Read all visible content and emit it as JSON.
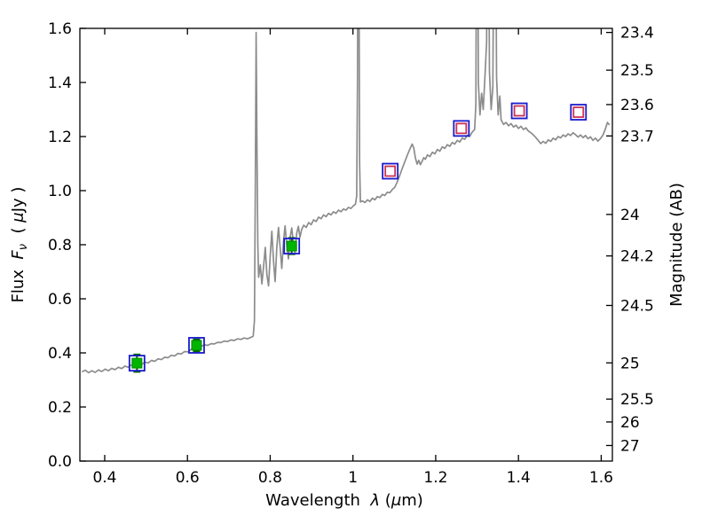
{
  "labels": {
    "xlabel": {
      "p1": "Wavelength  ",
      "p2": "λ",
      "p3": " (",
      "p4": "μ",
      "p5": "m)"
    },
    "ylabel_left": {
      "p1": "Flux  ",
      "p2": "F",
      "p3": "ν",
      "p4": "  ( ",
      "p5": "μ",
      "p6": "Jy )"
    },
    "ylabel_right": "Magnitude (AB)"
  },
  "chart_data": {
    "type": "line",
    "title": "",
    "xlabel": "Wavelength λ (μm)",
    "ylabel_left": "Flux Fν (μJy)",
    "ylabel_right": "Magnitude (AB)",
    "xlim": [
      0.34,
      1.627
    ],
    "ylim": [
      0.0,
      1.6
    ],
    "grid": false,
    "legend_position": "none",
    "ab_zeropoint": 23.9,
    "x_ticks": [
      0.4,
      0.6,
      0.8,
      1.0,
      1.2,
      1.4,
      1.6
    ],
    "x_tick_labels": [
      "0.4",
      "0.6",
      "0.8",
      "1",
      "1.2",
      "1.4",
      "1.6"
    ],
    "y_ticks_left": [
      0.0,
      0.2,
      0.4,
      0.6,
      0.8,
      1.0,
      1.2,
      1.4,
      1.6
    ],
    "y_tick_labels_left": [
      "0.0",
      "0.2",
      "0.4",
      "0.6",
      "0.8",
      "1.0",
      "1.2",
      "1.4",
      "1.6"
    ],
    "y_ticks_right_mag": [
      23.4,
      23.5,
      23.6,
      23.7,
      24,
      24.2,
      24.5,
      25,
      25.5,
      26,
      27
    ],
    "y_tick_labels_right": [
      "23.4",
      "23.5",
      "23.6",
      "23.7",
      "24",
      "24.2",
      "24.5",
      "25",
      "25.5",
      "26",
      "27"
    ],
    "colors": {
      "background": "#ffffff",
      "frame": "#000000",
      "spectrum_gray": "#8c8c8c",
      "marker_blue": "#1a1acd",
      "marker_green": "#00b400",
      "errorbar_dark_green": "#006400",
      "marker_red": "#cc3355",
      "text": "#000000"
    },
    "series": [
      {
        "name": "model-spectrum",
        "type": "line",
        "color": "#8c8c8c",
        "linewidth": 1.7,
        "points": [
          [
            0.345,
            0.33
          ],
          [
            0.353,
            0.336
          ],
          [
            0.361,
            0.327
          ],
          [
            0.369,
            0.334
          ],
          [
            0.377,
            0.328
          ],
          [
            0.385,
            0.337
          ],
          [
            0.393,
            0.331
          ],
          [
            0.401,
            0.34
          ],
          [
            0.409,
            0.334
          ],
          [
            0.417,
            0.343
          ],
          [
            0.425,
            0.338
          ],
          [
            0.433,
            0.347
          ],
          [
            0.441,
            0.342
          ],
          [
            0.449,
            0.351
          ],
          [
            0.457,
            0.347
          ],
          [
            0.465,
            0.356
          ],
          [
            0.473,
            0.352
          ],
          [
            0.481,
            0.361
          ],
          [
            0.489,
            0.357
          ],
          [
            0.497,
            0.366
          ],
          [
            0.505,
            0.363
          ],
          [
            0.513,
            0.372
          ],
          [
            0.521,
            0.369
          ],
          [
            0.529,
            0.378
          ],
          [
            0.537,
            0.375
          ],
          [
            0.545,
            0.384
          ],
          [
            0.553,
            0.382
          ],
          [
            0.561,
            0.391
          ],
          [
            0.569,
            0.389
          ],
          [
            0.577,
            0.398
          ],
          [
            0.585,
            0.396
          ],
          [
            0.593,
            0.405
          ],
          [
            0.601,
            0.404
          ],
          [
            0.609,
            0.413
          ],
          [
            0.617,
            0.412
          ],
          [
            0.625,
            0.421
          ],
          [
            0.633,
            0.424
          ],
          [
            0.641,
            0.43
          ],
          [
            0.649,
            0.428
          ],
          [
            0.657,
            0.434
          ],
          [
            0.665,
            0.433
          ],
          [
            0.673,
            0.439
          ],
          [
            0.681,
            0.438
          ],
          [
            0.689,
            0.444
          ],
          [
            0.697,
            0.442
          ],
          [
            0.705,
            0.448
          ],
          [
            0.713,
            0.446
          ],
          [
            0.721,
            0.452
          ],
          [
            0.729,
            0.45
          ],
          [
            0.737,
            0.455
          ],
          [
            0.745,
            0.452
          ],
          [
            0.753,
            0.457
          ],
          [
            0.759,
            0.462
          ],
          [
            0.762,
            0.52
          ],
          [
            0.764,
            1.02
          ],
          [
            0.766,
            1.585
          ],
          [
            0.768,
            1.18
          ],
          [
            0.77,
            0.8
          ],
          [
            0.772,
            0.68
          ],
          [
            0.776,
            0.725
          ],
          [
            0.78,
            0.655
          ],
          [
            0.784,
            0.72
          ],
          [
            0.788,
            0.79
          ],
          [
            0.792,
            0.69
          ],
          [
            0.796,
            0.648
          ],
          [
            0.8,
            0.76
          ],
          [
            0.804,
            0.85
          ],
          [
            0.808,
            0.74
          ],
          [
            0.812,
            0.664
          ],
          [
            0.816,
            0.79
          ],
          [
            0.82,
            0.864
          ],
          [
            0.824,
            0.792
          ],
          [
            0.828,
            0.712
          ],
          [
            0.832,
            0.81
          ],
          [
            0.836,
            0.87
          ],
          [
            0.84,
            0.8
          ],
          [
            0.844,
            0.748
          ],
          [
            0.848,
            0.826
          ],
          [
            0.852,
            0.862
          ],
          [
            0.856,
            0.806
          ],
          [
            0.86,
            0.768
          ],
          [
            0.864,
            0.842
          ],
          [
            0.868,
            0.868
          ],
          [
            0.872,
            0.828
          ],
          [
            0.876,
            0.856
          ],
          [
            0.881,
            0.872
          ],
          [
            0.887,
            0.864
          ],
          [
            0.893,
            0.882
          ],
          [
            0.899,
            0.874
          ],
          [
            0.905,
            0.892
          ],
          [
            0.911,
            0.886
          ],
          [
            0.917,
            0.902
          ],
          [
            0.923,
            0.896
          ],
          [
            0.929,
            0.91
          ],
          [
            0.935,
            0.904
          ],
          [
            0.941,
            0.916
          ],
          [
            0.947,
            0.91
          ],
          [
            0.953,
            0.922
          ],
          [
            0.959,
            0.916
          ],
          [
            0.965,
            0.928
          ],
          [
            0.971,
            0.922
          ],
          [
            0.977,
            0.932
          ],
          [
            0.983,
            0.928
          ],
          [
            0.989,
            0.938
          ],
          [
            0.995,
            0.934
          ],
          [
            1.001,
            0.944
          ],
          [
            1.006,
            0.95
          ],
          [
            1.009,
            0.98
          ],
          [
            1.011,
            1.4
          ],
          [
            1.013,
            2.5
          ],
          [
            1.016,
            1.1
          ],
          [
            1.018,
            0.958
          ],
          [
            1.023,
            0.962
          ],
          [
            1.029,
            0.956
          ],
          [
            1.035,
            0.966
          ],
          [
            1.041,
            0.96
          ],
          [
            1.047,
            0.972
          ],
          [
            1.053,
            0.966
          ],
          [
            1.059,
            0.978
          ],
          [
            1.065,
            0.974
          ],
          [
            1.071,
            0.986
          ],
          [
            1.077,
            0.982
          ],
          [
            1.083,
            0.994
          ],
          [
            1.089,
            0.992
          ],
          [
            1.095,
            1.004
          ],
          [
            1.101,
            1.012
          ],
          [
            1.107,
            1.032
          ],
          [
            1.113,
            1.056
          ],
          [
            1.119,
            1.082
          ],
          [
            1.125,
            1.106
          ],
          [
            1.131,
            1.13
          ],
          [
            1.137,
            1.152
          ],
          [
            1.143,
            1.172
          ],
          [
            1.147,
            1.158
          ],
          [
            1.151,
            1.12
          ],
          [
            1.155,
            1.098
          ],
          [
            1.159,
            1.112
          ],
          [
            1.163,
            1.096
          ],
          [
            1.167,
            1.108
          ],
          [
            1.171,
            1.122
          ],
          [
            1.175,
            1.116
          ],
          [
            1.18,
            1.132
          ],
          [
            1.186,
            1.126
          ],
          [
            1.192,
            1.142
          ],
          [
            1.198,
            1.136
          ],
          [
            1.204,
            1.152
          ],
          [
            1.21,
            1.146
          ],
          [
            1.216,
            1.162
          ],
          [
            1.222,
            1.156
          ],
          [
            1.228,
            1.17
          ],
          [
            1.234,
            1.164
          ],
          [
            1.24,
            1.178
          ],
          [
            1.246,
            1.172
          ],
          [
            1.252,
            1.186
          ],
          [
            1.258,
            1.18
          ],
          [
            1.264,
            1.194
          ],
          [
            1.27,
            1.19
          ],
          [
            1.276,
            1.204
          ],
          [
            1.282,
            1.2
          ],
          [
            1.288,
            1.216
          ],
          [
            1.294,
            1.226
          ],
          [
            1.297,
            1.32
          ],
          [
            1.3,
            2.6
          ],
          [
            1.303,
            1.4
          ],
          [
            1.307,
            1.28
          ],
          [
            1.311,
            1.36
          ],
          [
            1.315,
            1.3
          ],
          [
            1.319,
            1.42
          ],
          [
            1.323,
            1.55
          ],
          [
            1.326,
            2.6
          ],
          [
            1.33,
            1.44
          ],
          [
            1.334,
            1.3
          ],
          [
            1.338,
            1.38
          ],
          [
            1.343,
            2.6
          ],
          [
            1.347,
            1.42
          ],
          [
            1.351,
            1.28
          ],
          [
            1.355,
            1.35
          ],
          [
            1.358,
            1.262
          ],
          [
            1.364,
            1.245
          ],
          [
            1.37,
            1.252
          ],
          [
            1.376,
            1.24
          ],
          [
            1.382,
            1.248
          ],
          [
            1.388,
            1.235
          ],
          [
            1.394,
            1.242
          ],
          [
            1.4,
            1.23
          ],
          [
            1.406,
            1.238
          ],
          [
            1.412,
            1.226
          ],
          [
            1.418,
            1.232
          ],
          [
            1.424,
            1.22
          ],
          [
            1.43,
            1.214
          ],
          [
            1.436,
            1.206
          ],
          [
            1.442,
            1.196
          ],
          [
            1.448,
            1.185
          ],
          [
            1.454,
            1.174
          ],
          [
            1.46,
            1.182
          ],
          [
            1.466,
            1.175
          ],
          [
            1.472,
            1.188
          ],
          [
            1.478,
            1.182
          ],
          [
            1.484,
            1.194
          ],
          [
            1.49,
            1.188
          ],
          [
            1.496,
            1.2
          ],
          [
            1.502,
            1.195
          ],
          [
            1.508,
            1.206
          ],
          [
            1.514,
            1.2
          ],
          [
            1.52,
            1.21
          ],
          [
            1.526,
            1.204
          ],
          [
            1.532,
            1.214
          ],
          [
            1.538,
            1.207
          ],
          [
            1.544,
            1.198
          ],
          [
            1.55,
            1.206
          ],
          [
            1.556,
            1.196
          ],
          [
            1.562,
            1.204
          ],
          [
            1.568,
            1.192
          ],
          [
            1.574,
            1.199
          ],
          [
            1.58,
            1.186
          ],
          [
            1.586,
            1.194
          ],
          [
            1.592,
            1.183
          ],
          [
            1.598,
            1.192
          ],
          [
            1.604,
            1.205
          ],
          [
            1.61,
            1.228
          ],
          [
            1.615,
            1.252
          ],
          [
            1.62,
            1.243
          ]
        ]
      },
      {
        "name": "observed-photometry",
        "type": "scatter",
        "marker": "filled-square-with-errorbar-inside-open-square",
        "color": "#00b400",
        "edge": "#1a1acd",
        "errorbar_color": "#006400",
        "points": [
          {
            "x": 0.478,
            "y": 0.362,
            "yerr": 0.032
          },
          {
            "x": 0.622,
            "y": 0.428,
            "yerr": 0.022
          },
          {
            "x": 0.852,
            "y": 0.795,
            "yerr": 0.03
          }
        ]
      },
      {
        "name": "model-photometry",
        "type": "scatter",
        "marker": "open-double-square",
        "outer_color": "#1a1acd",
        "inner_color": "#cc3355",
        "points": [
          {
            "x": 1.09,
            "y": 1.072
          },
          {
            "x": 1.262,
            "y": 1.23
          },
          {
            "x": 1.402,
            "y": 1.295
          },
          {
            "x": 1.545,
            "y": 1.29
          }
        ]
      }
    ]
  }
}
